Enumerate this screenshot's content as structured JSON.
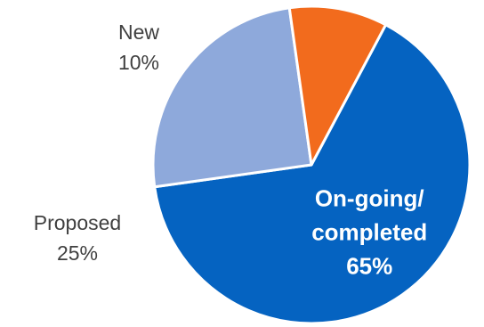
{
  "chart_data": {
    "type": "pie",
    "slices": [
      {
        "label": "On-going/ completed",
        "label_lines": [
          "On-going/",
          "completed"
        ],
        "value": 65,
        "value_label": "65%",
        "color": "#0563C1",
        "label_position": "inside"
      },
      {
        "label": "Proposed",
        "label_lines": [
          "Proposed"
        ],
        "value": 25,
        "value_label": "25%",
        "color": "#8EA9DB",
        "label_position": "outside-left"
      },
      {
        "label": "New",
        "label_lines": [
          "New"
        ],
        "value": 10,
        "value_label": "10%",
        "color": "#F26B1D",
        "label_position": "outside-top"
      }
    ],
    "start_angle_deg": 28,
    "direction": "clockwise",
    "legend": "none",
    "slice_border_color": "#ffffff"
  }
}
